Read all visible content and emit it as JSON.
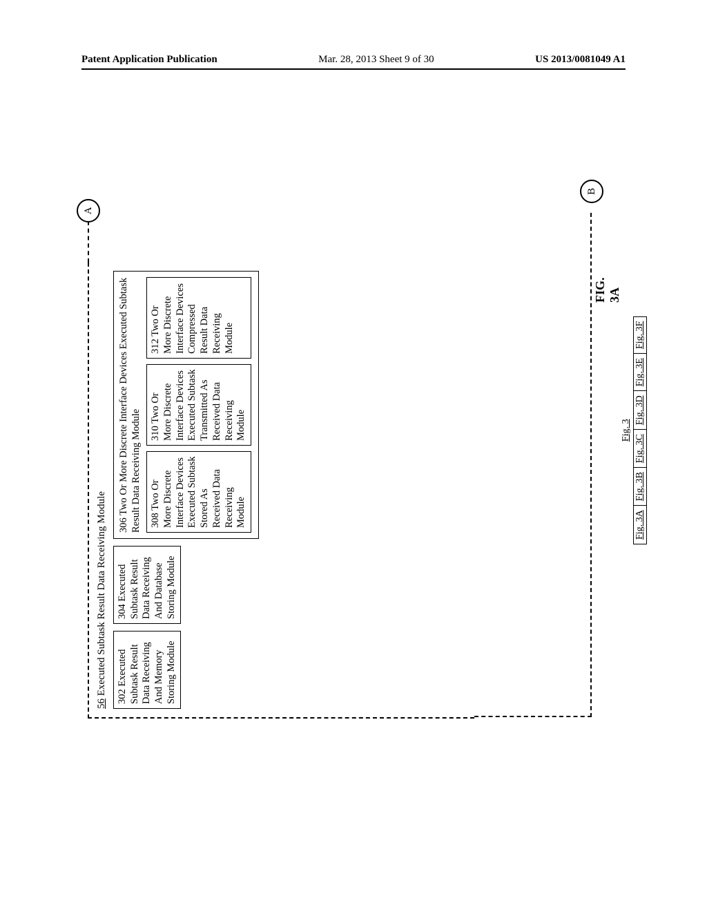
{
  "header": {
    "left": "Patent Application Publication",
    "mid": "Mar. 28, 2013  Sheet 9 of 30",
    "right": "US 2013/0081049 A1"
  },
  "module56": {
    "ref": "56",
    "title": " Executed Subtask Result Data Receiving Module",
    "box302": "302 Executed Subtask Result Data Receiving And Memory Storing Module",
    "box304": "304 Executed Subtask Result Data Receiving And Database Storing Module",
    "box306": {
      "title": "306 Two Or More Discrete Interface Devices Executed Subtask Result Data Receiving Module",
      "box308": "308 Two Or More Discrete Interface Devices Executed Subtask Stored As Received Data Receiving Module",
      "box310": "310 Two Or More Discrete Interface Devices Executed Subtask Transmitted As Received Data Receiving Module",
      "box312": "312 Two Or More Discrete Interface Devices Compressed Result Data Receiving Module"
    }
  },
  "connectors": {
    "a": "A",
    "b": "B"
  },
  "figLabel": "FIG. 3A",
  "key": {
    "title": "Fig. 3",
    "cells": [
      "Fig. 3A",
      "Fig. 3B",
      "Fig. 3C",
      "Fig. 3D",
      "Fig. 3E",
      "Fig. 3F"
    ]
  }
}
